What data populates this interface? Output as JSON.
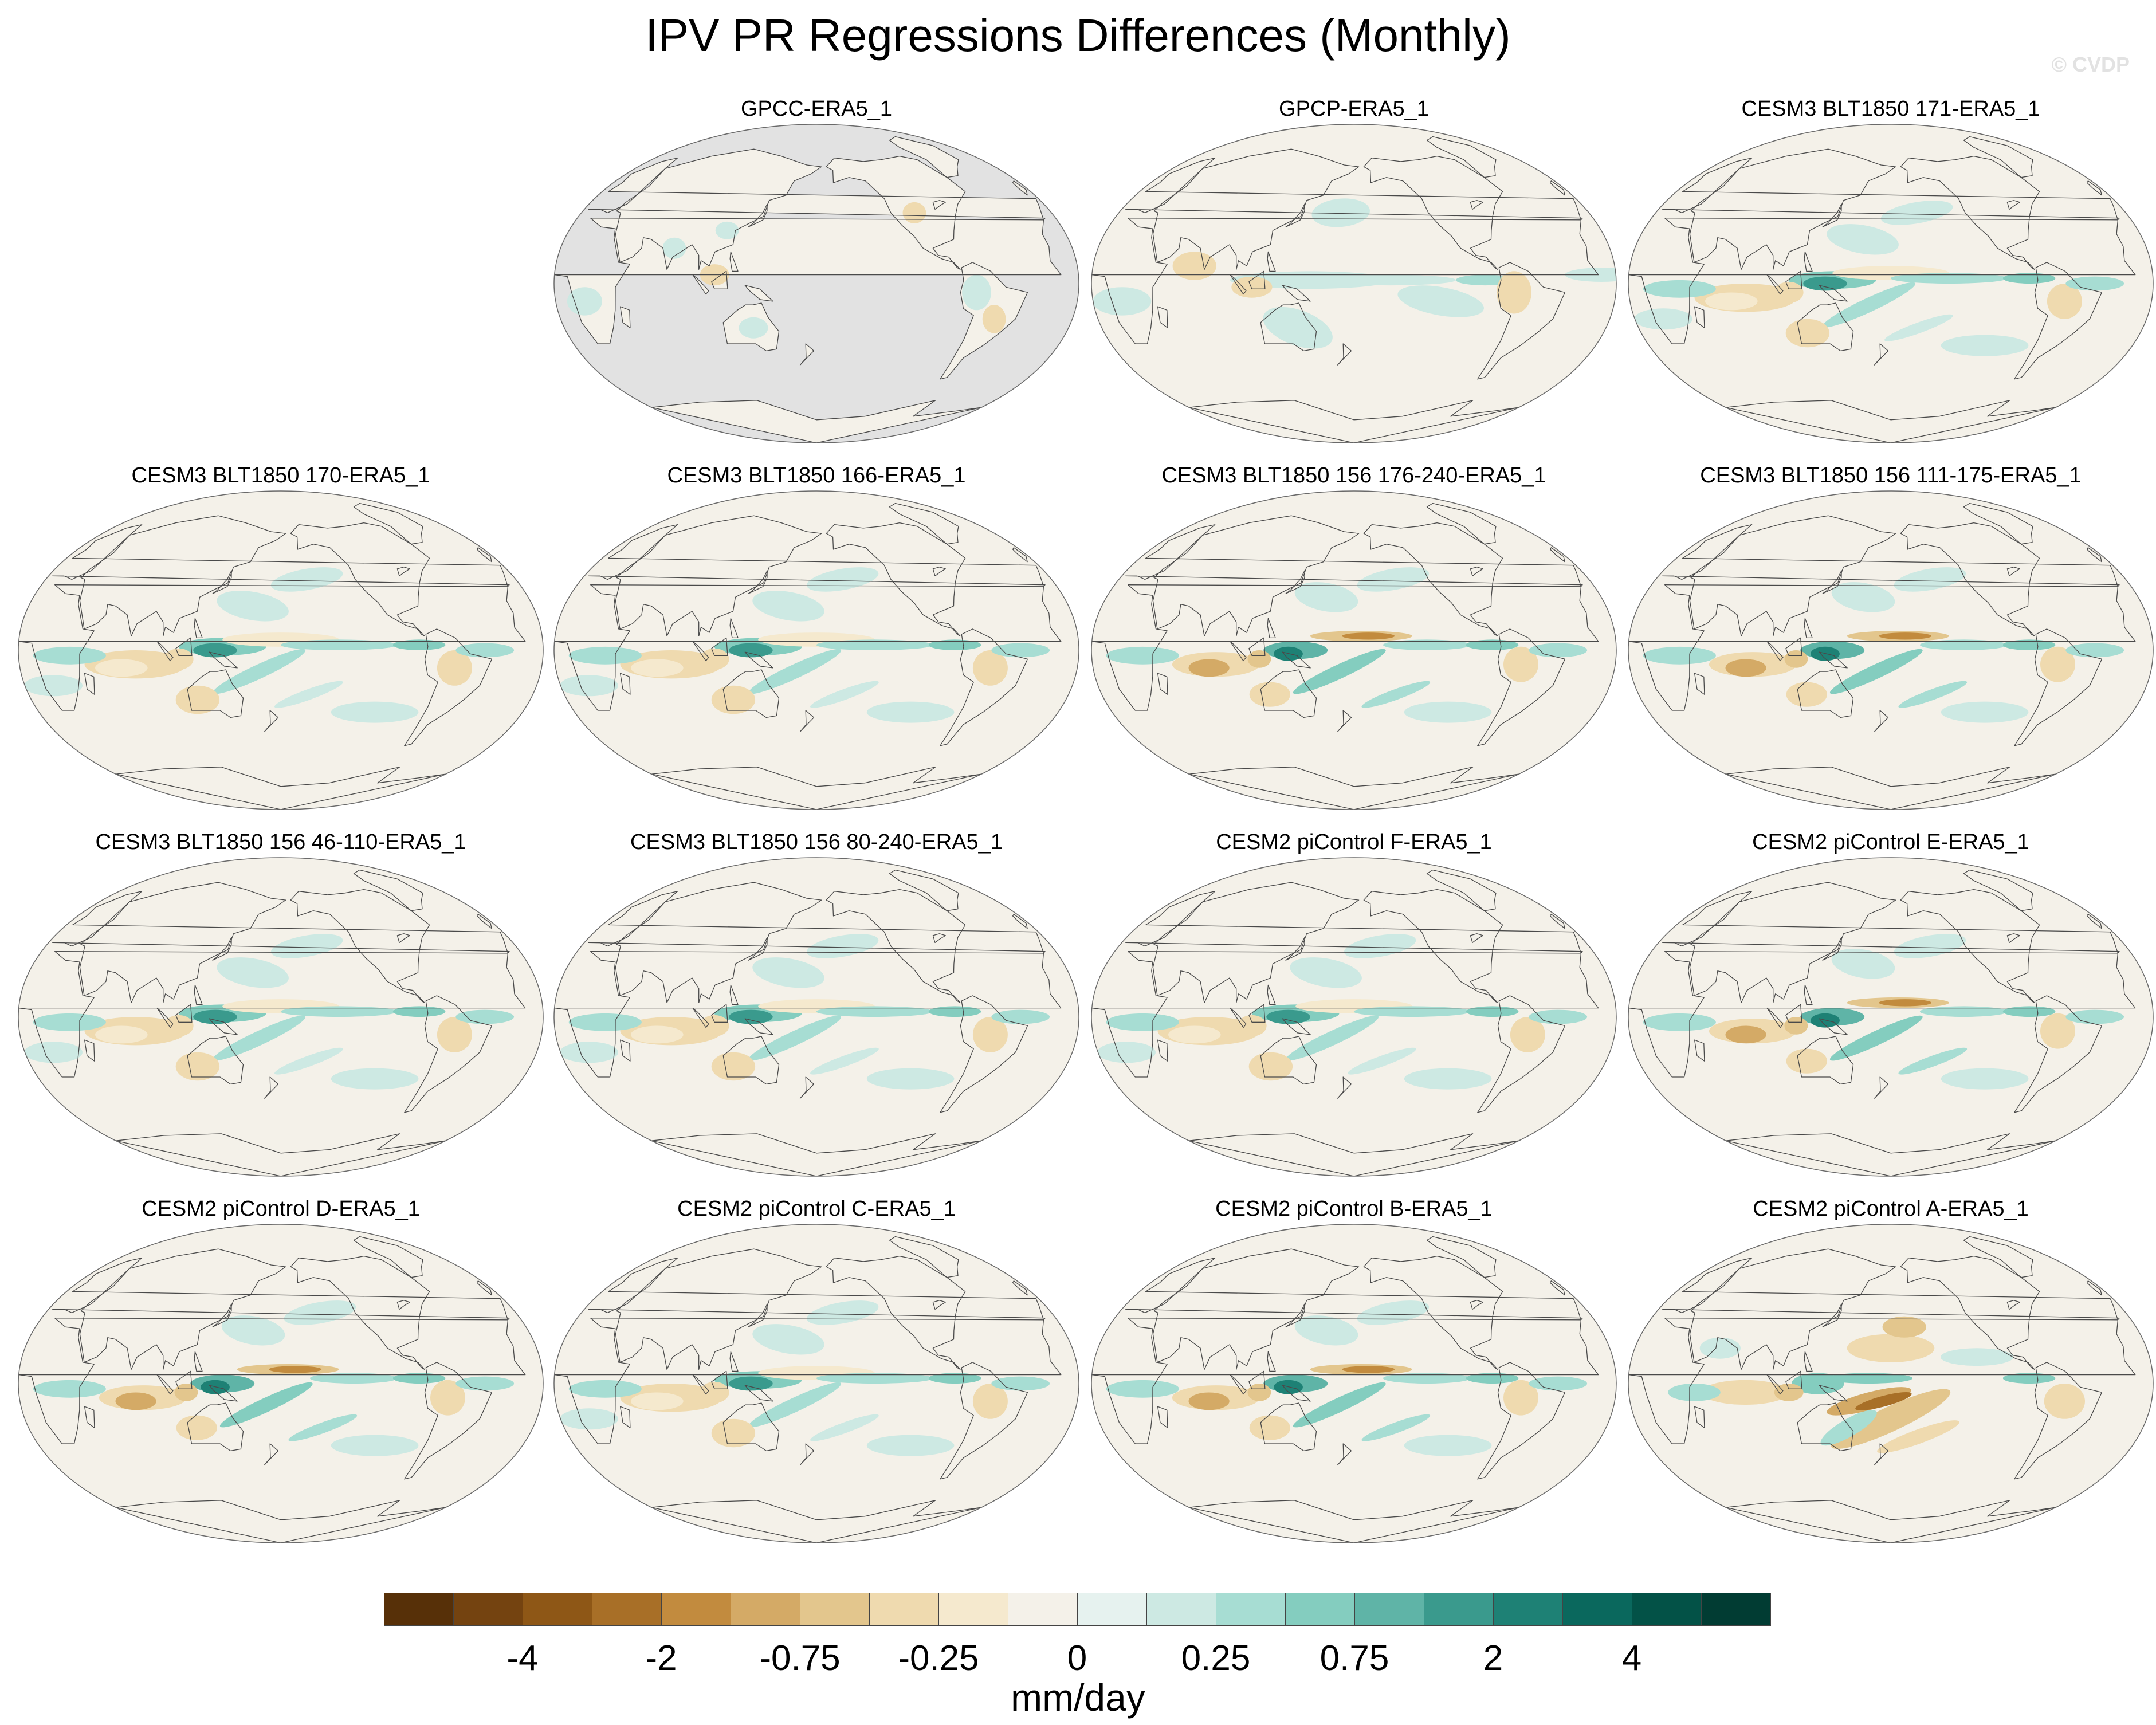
{
  "title": "IPV PR Regressions Differences (Monthly)",
  "watermark": "© CVDP",
  "units": "mm/day",
  "variable": "PR",
  "map_projection": "robinson",
  "map_center_longitude": 180,
  "masked_ocean_color": "#e2e2e2",
  "panels": [
    {
      "title": "GPCC-ERA5_1",
      "ocean_masked": true,
      "pattern": "gpcc"
    },
    {
      "title": "GPCP-ERA5_1",
      "ocean_masked": false,
      "pattern": "weak"
    },
    {
      "title": "CESM3 BLT1850 171-ERA5_1",
      "ocean_masked": false,
      "pattern": "wp_green"
    },
    {
      "title": "CESM3 BLT1850 170-ERA5_1",
      "ocean_masked": false,
      "pattern": "wp_green"
    },
    {
      "title": "CESM3 BLT1850 166-ERA5_1",
      "ocean_masked": false,
      "pattern": "wp_green"
    },
    {
      "title": "CESM3 BLT1850 156 176-240-ERA5_1",
      "ocean_masked": false,
      "pattern": "wp_green_brown"
    },
    {
      "title": "CESM3 BLT1850 156 111-175-ERA5_1",
      "ocean_masked": false,
      "pattern": "wp_green_brown"
    },
    {
      "title": "CESM3 BLT1850 156 46-110-ERA5_1",
      "ocean_masked": false,
      "pattern": "wp_green"
    },
    {
      "title": "CESM3 BLT1850 156 80-240-ERA5_1",
      "ocean_masked": false,
      "pattern": "wp_green"
    },
    {
      "title": "CESM2 piControl F-ERA5_1",
      "ocean_masked": false,
      "pattern": "wp_green"
    },
    {
      "title": "CESM2 piControl E-ERA5_1",
      "ocean_masked": false,
      "pattern": "wp_green_brown"
    },
    {
      "title": "CESM2 piControl D-ERA5_1",
      "ocean_masked": false,
      "pattern": "wp_green_brown"
    },
    {
      "title": "CESM2 piControl C-ERA5_1",
      "ocean_masked": false,
      "pattern": "wp_green"
    },
    {
      "title": "CESM2 piControl B-ERA5_1",
      "ocean_masked": false,
      "pattern": "wp_green_brown"
    },
    {
      "title": "CESM2 piControl A-ERA5_1",
      "ocean_masked": false,
      "pattern": "strong_brown"
    }
  ],
  "colorbar": {
    "colors": [
      "#573008",
      "#744310",
      "#8e5716",
      "#a86f27",
      "#c28b3e",
      "#d4aa66",
      "#e3c68d",
      "#efdaaf",
      "#f5e9ce",
      "#f4f1e9",
      "#e6f2ef",
      "#cde9e3",
      "#a7ddd3",
      "#84cdbf",
      "#5fb4a7",
      "#3a9a8d",
      "#1e8175",
      "#0a685d",
      "#035247",
      "#013c33"
    ],
    "tick_labels": [
      "-4",
      "-2",
      "-0.75",
      "-0.25",
      "0",
      "0.25",
      "0.75",
      "2",
      "4"
    ]
  }
}
